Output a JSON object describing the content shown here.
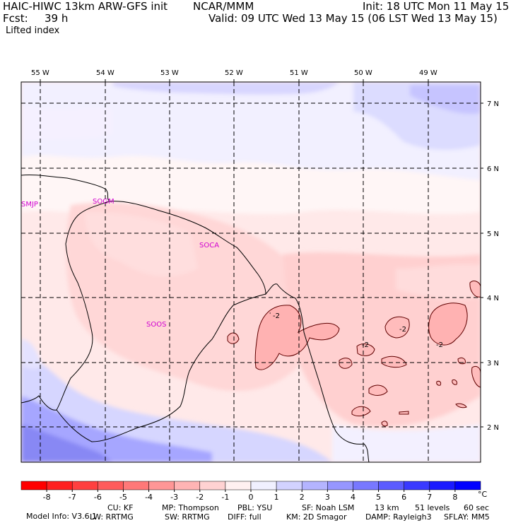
{
  "header": {
    "line1_left": "HAIC-HIWC 13km ARW-GFS init",
    "line1_mid": "NCAR/MMM",
    "line1_right": "Init: 18 UTC Mon 11 May 15",
    "line2_left_label": "Fcst:",
    "line2_left_value": "39 h",
    "line2_right": "Valid: 09 UTC Wed 13 May 15 (06 LST Wed 13 May 15)",
    "field_name": "Lifted index"
  },
  "map": {
    "lon_labels": [
      "55 W",
      "54 W",
      "53 W",
      "52 W",
      "51 W",
      "50 W",
      "49 W"
    ],
    "lat_labels": [
      "7 N",
      "6 N",
      "5 N",
      "4 N",
      "3 N",
      "2 N"
    ],
    "stations": [
      "SMJP",
      "SOGM",
      "SOCA",
      "SOOS"
    ],
    "contour_labels": [
      "-2",
      "-2",
      "-2",
      "-2",
      "-2"
    ]
  },
  "colorbar": {
    "ticks": [
      "-8",
      "-7",
      "-6",
      "-5",
      "-4",
      "-3",
      "-2",
      "-1",
      "0",
      "1",
      "2",
      "3",
      "4",
      "5",
      "6",
      "7",
      "8"
    ],
    "unit": "°C",
    "colors": [
      "#ff0000",
      "#ff2020",
      "#ff4040",
      "#ff5c5c",
      "#ff7878",
      "#ff9696",
      "#ffb4b4",
      "#ffd2d2",
      "#fff0f0",
      "#f0f0ff",
      "#d2d2ff",
      "#b4b4ff",
      "#9696ff",
      "#7878ff",
      "#5c5cff",
      "#3a3aff",
      "#1a1aff",
      "#0000ff"
    ]
  },
  "footer": {
    "line1": [
      "Model Info: V3.6.1",
      "CU: KF",
      "MP: Thompson",
      "PBL: YSU",
      "SF: Noah LSM",
      "13 km",
      "51 levels",
      "60 sec"
    ],
    "line2": [
      "LW: RRTMG",
      "SW: RRTMG",
      "DIFF: full",
      "KM: 2D Smagor",
      "DAMP: Rayleigh3",
      "SFLAY: MM5"
    ]
  }
}
